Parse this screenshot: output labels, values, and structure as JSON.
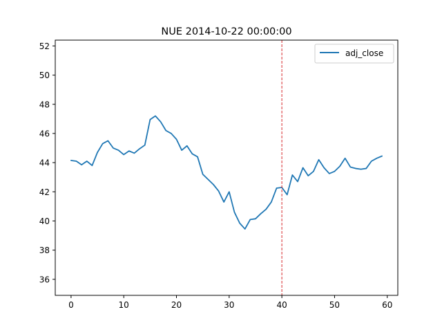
{
  "chart_data": {
    "type": "line",
    "title": "NUE 2014-10-22 00:00:00",
    "xlabel": "",
    "ylabel": "",
    "xlim": [
      -3,
      62
    ],
    "ylim": [
      34.9,
      52.4
    ],
    "xticks": [
      0,
      10,
      20,
      30,
      40,
      50,
      60
    ],
    "yticks": [
      36,
      38,
      40,
      42,
      44,
      46,
      48,
      50,
      52
    ],
    "grid": false,
    "legend_position": "top-right",
    "series": [
      {
        "name": "adj_close",
        "color": "#1f77b4",
        "x": [
          0,
          1,
          2,
          3,
          4,
          5,
          6,
          7,
          8,
          9,
          10,
          11,
          12,
          13,
          14,
          15,
          16,
          17,
          18,
          19,
          20,
          21,
          22,
          23,
          24,
          25,
          26,
          27,
          28,
          29,
          30,
          31,
          32,
          33,
          34,
          35,
          36,
          37,
          38,
          39,
          40,
          41,
          42,
          43,
          44,
          45,
          46,
          47,
          48,
          49,
          50,
          51,
          52,
          53,
          54,
          55,
          56,
          57,
          58,
          59
        ],
        "values": [
          44.15,
          44.1,
          43.85,
          44.1,
          43.8,
          44.7,
          45.3,
          45.5,
          45.0,
          44.85,
          44.55,
          44.8,
          44.65,
          44.95,
          45.2,
          46.95,
          47.2,
          46.8,
          46.2,
          46.0,
          45.6,
          44.85,
          45.15,
          44.6,
          44.4,
          43.2,
          42.85,
          42.5,
          42.05,
          41.3,
          42.0,
          40.6,
          39.85,
          39.45,
          40.1,
          40.15,
          40.5,
          40.8,
          41.3,
          42.25,
          42.3,
          41.8,
          43.15,
          42.7,
          43.65,
          43.1,
          43.4,
          44.2,
          43.65,
          43.25,
          43.4,
          43.75,
          44.3,
          43.7,
          43.6,
          43.55,
          43.6,
          44.1,
          44.3,
          44.45
        ]
      }
    ],
    "vlines": [
      {
        "x": 40,
        "color": "#d62728",
        "style": "dashed"
      }
    ]
  }
}
